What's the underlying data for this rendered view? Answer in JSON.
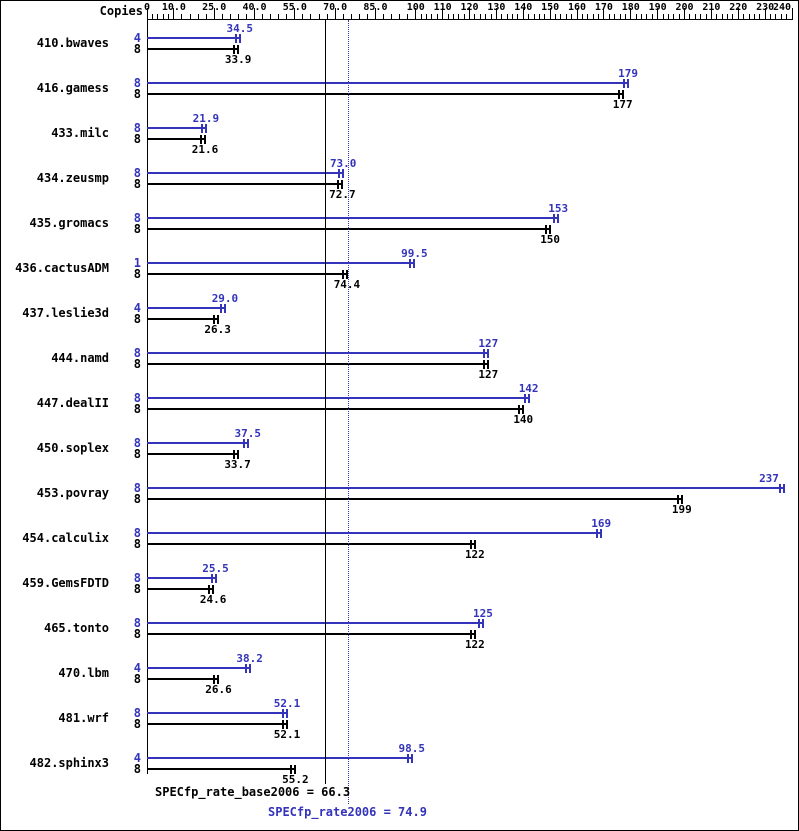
{
  "header": {
    "copies_label": "Copies"
  },
  "footer": {
    "base_label": "SPECfp_rate_base2006 = 66.3",
    "peak_label": "SPECfp_rate2006 = 74.9"
  },
  "colors": {
    "peak": "#3333bb",
    "base": "#000000",
    "background": "#ffffff"
  },
  "chart_data": {
    "type": "bar",
    "orientation": "horizontal",
    "title": "",
    "xlabel": "",
    "xlim": [
      0,
      240
    ],
    "grid": false,
    "x_axis_tick_labels": [
      "0",
      "10.0",
      "25.0",
      "40.0",
      "55.0",
      "70.0",
      "85.0",
      "100",
      "110",
      "120",
      "130",
      "140",
      "150",
      "160",
      "170",
      "180",
      "190",
      "200",
      "210",
      "220",
      "230",
      "240"
    ],
    "x_axis_tick_values": [
      0,
      10,
      25,
      40,
      55,
      70,
      85,
      100,
      110,
      120,
      130,
      140,
      150,
      160,
      170,
      180,
      190,
      200,
      210,
      220,
      230,
      240
    ],
    "series_names": [
      "peak",
      "base"
    ],
    "reference_lines": [
      {
        "name": "SPECfp_rate_base2006",
        "value": 66.3,
        "style": "solid",
        "color_key": "base"
      },
      {
        "name": "SPECfp_rate2006",
        "value": 74.9,
        "style": "dotted",
        "color_key": "peak"
      }
    ],
    "benchmarks": [
      {
        "name": "410.bwaves",
        "peak_copies": "4",
        "base_copies": "8",
        "peak_value": 34.5,
        "base_value": 33.9,
        "peak_label": "34.5",
        "base_label": "33.9"
      },
      {
        "name": "416.gamess",
        "peak_copies": "8",
        "base_copies": "8",
        "peak_value": 179,
        "base_value": 177,
        "peak_label": "179",
        "base_label": "177"
      },
      {
        "name": "433.milc",
        "peak_copies": "8",
        "base_copies": "8",
        "peak_value": 21.9,
        "base_value": 21.6,
        "peak_label": "21.9",
        "base_label": "21.6"
      },
      {
        "name": "434.zeusmp",
        "peak_copies": "8",
        "base_copies": "8",
        "peak_value": 73.0,
        "base_value": 72.7,
        "peak_label": "73.0",
        "base_label": "72.7"
      },
      {
        "name": "435.gromacs",
        "peak_copies": "8",
        "base_copies": "8",
        "peak_value": 153,
        "base_value": 150,
        "peak_label": "153",
        "base_label": "150"
      },
      {
        "name": "436.cactusADM",
        "peak_copies": "1",
        "base_copies": "8",
        "peak_value": 99.5,
        "base_value": 74.4,
        "peak_label": "99.5",
        "base_label": "74.4"
      },
      {
        "name": "437.leslie3d",
        "peak_copies": "4",
        "base_copies": "8",
        "peak_value": 29.0,
        "base_value": 26.3,
        "peak_label": "29.0",
        "base_label": "26.3"
      },
      {
        "name": "444.namd",
        "peak_copies": "8",
        "base_copies": "8",
        "peak_value": 127,
        "base_value": 127,
        "peak_label": "127",
        "base_label": "127"
      },
      {
        "name": "447.dealII",
        "peak_copies": "8",
        "base_copies": "8",
        "peak_value": 142,
        "base_value": 140,
        "peak_label": "142",
        "base_label": "140"
      },
      {
        "name": "450.soplex",
        "peak_copies": "8",
        "base_copies": "8",
        "peak_value": 37.5,
        "base_value": 33.7,
        "peak_label": "37.5",
        "base_label": "33.7"
      },
      {
        "name": "453.povray",
        "peak_copies": "8",
        "base_copies": "8",
        "peak_value": 237,
        "base_value": 199,
        "peak_label": "237",
        "base_label": "199"
      },
      {
        "name": "454.calculix",
        "peak_copies": "8",
        "base_copies": "8",
        "peak_value": 169,
        "base_value": 122,
        "peak_label": "169",
        "base_label": "122"
      },
      {
        "name": "459.GemsFDTD",
        "peak_copies": "8",
        "base_copies": "8",
        "peak_value": 25.5,
        "base_value": 24.6,
        "peak_label": "25.5",
        "base_label": "24.6"
      },
      {
        "name": "465.tonto",
        "peak_copies": "8",
        "base_copies": "8",
        "peak_value": 125,
        "base_value": 122,
        "peak_label": "125",
        "base_label": "122"
      },
      {
        "name": "470.lbm",
        "peak_copies": "4",
        "base_copies": "8",
        "peak_value": 38.2,
        "base_value": 26.6,
        "peak_label": "38.2",
        "base_label": "26.6"
      },
      {
        "name": "481.wrf",
        "peak_copies": "8",
        "base_copies": "8",
        "peak_value": 52.1,
        "base_value": 52.1,
        "peak_label": "52.1",
        "base_label": "52.1"
      },
      {
        "name": "482.sphinx3",
        "peak_copies": "4",
        "base_copies": "8",
        "peak_value": 98.5,
        "base_value": 55.2,
        "peak_label": "98.5",
        "base_label": "55.2"
      }
    ]
  }
}
